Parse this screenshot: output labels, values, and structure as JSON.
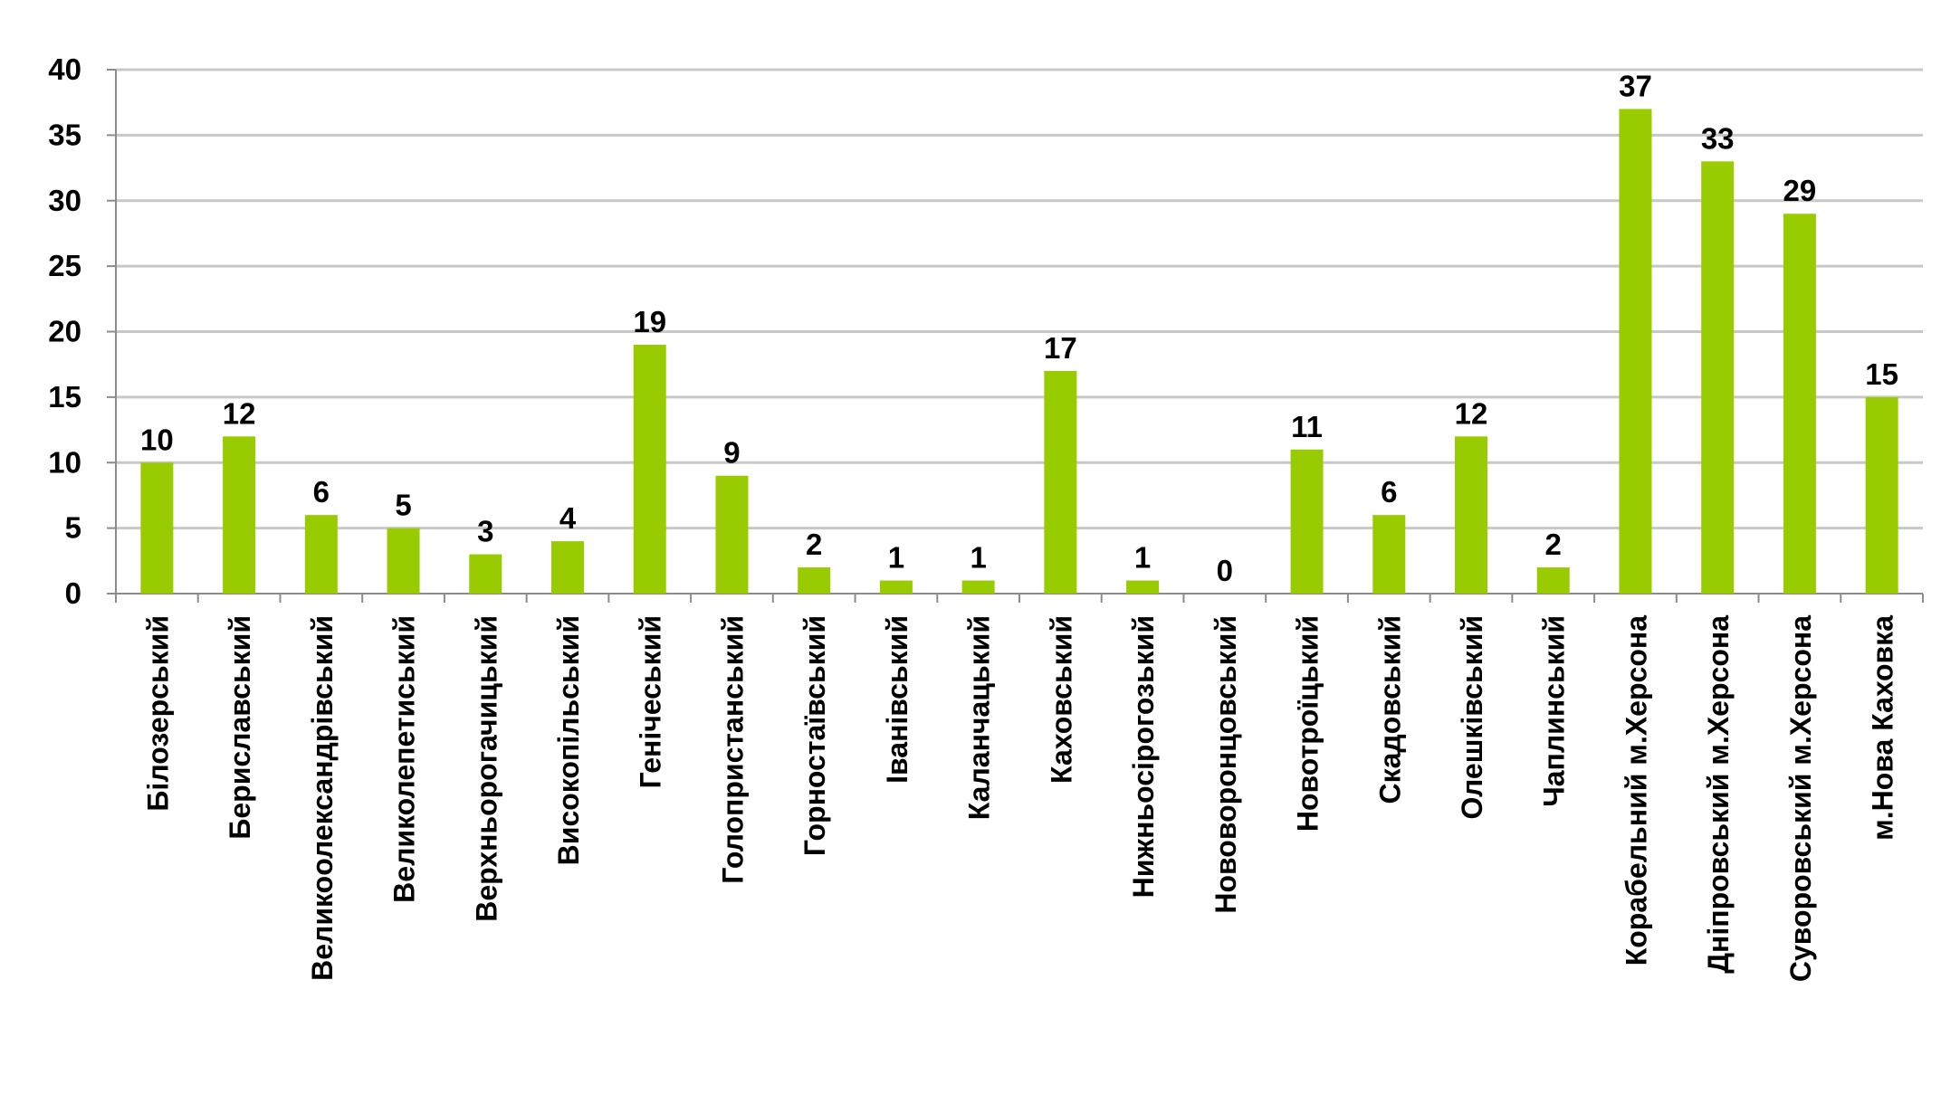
{
  "chart_data": {
    "type": "bar",
    "title": "",
    "xlabel": "",
    "ylabel": "",
    "ylim": [
      0,
      40
    ],
    "yticks": [
      0,
      5,
      10,
      15,
      20,
      25,
      30,
      35,
      40
    ],
    "grid": true,
    "legend": "none",
    "bar_color": "#99cc00",
    "grid_color": "#c8c8c8",
    "categories": [
      "Білозерський",
      "Бериславський",
      "Великоолександрівський",
      "Великолепетиський",
      "Верхньорогачицький",
      "Високопільський",
      "Генічеський",
      "Голопристанський",
      "Горностаївський",
      "Іванівський",
      "Каланчацький",
      "Каховський",
      "Нижньосірогозький",
      "Нововоронцовський",
      "Новотроїцький",
      "Скадовський",
      "Олешківський",
      "Чаплинський",
      "Корабельний м.Херсона",
      "Дніпровський м.Херсона",
      "Суворовський м.Херсона",
      "м.Нова Каховка"
    ],
    "values": [
      10,
      12,
      6,
      5,
      3,
      4,
      19,
      9,
      2,
      1,
      1,
      17,
      1,
      0,
      11,
      6,
      12,
      2,
      37,
      33,
      29,
      15
    ]
  }
}
